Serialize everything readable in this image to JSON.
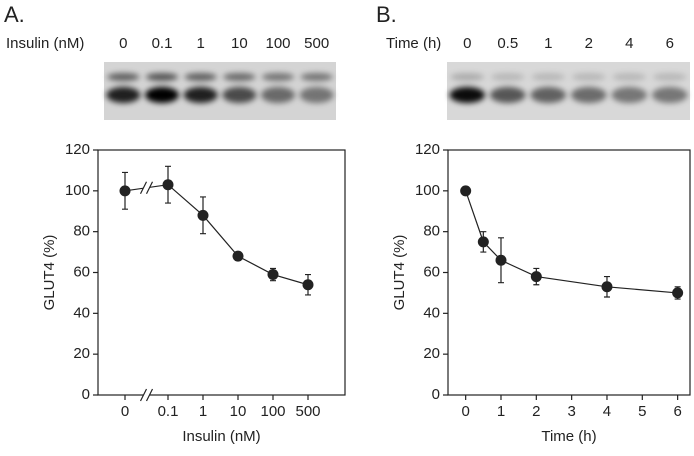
{
  "chart_data": [
    {
      "type": "line",
      "panel_label": "A.",
      "x_label": "Insulin (nM)",
      "y_label": "GLUT4 (%)",
      "categories": [
        "0",
        "0.1",
        "1",
        "10",
        "100",
        "500"
      ],
      "values": [
        100,
        103,
        88,
        68,
        59,
        54
      ],
      "errors": [
        9,
        9,
        9,
        2,
        3,
        5
      ],
      "color": "#222222",
      "ylim": [
        0,
        120
      ],
      "yticks": [
        0,
        20,
        40,
        60,
        80,
        100,
        120
      ],
      "axis_break": true
    },
    {
      "type": "scatter-line",
      "panel_label": "B.",
      "x_label": "Time (h)",
      "y_label": "GLUT4 (%)",
      "x": [
        0,
        0.5,
        1,
        2,
        4,
        6
      ],
      "values": [
        100,
        75,
        66,
        58,
        53,
        50
      ],
      "errors": [
        1,
        5,
        11,
        4,
        5,
        3
      ],
      "color": "#222222",
      "xlim": [
        -0.5,
        6.35
      ],
      "xticks": [
        0,
        1,
        2,
        3,
        4,
        5,
        6
      ],
      "ylim": [
        0,
        120
      ],
      "yticks": [
        0,
        20,
        40,
        60,
        80,
        100,
        120
      ]
    }
  ]
}
